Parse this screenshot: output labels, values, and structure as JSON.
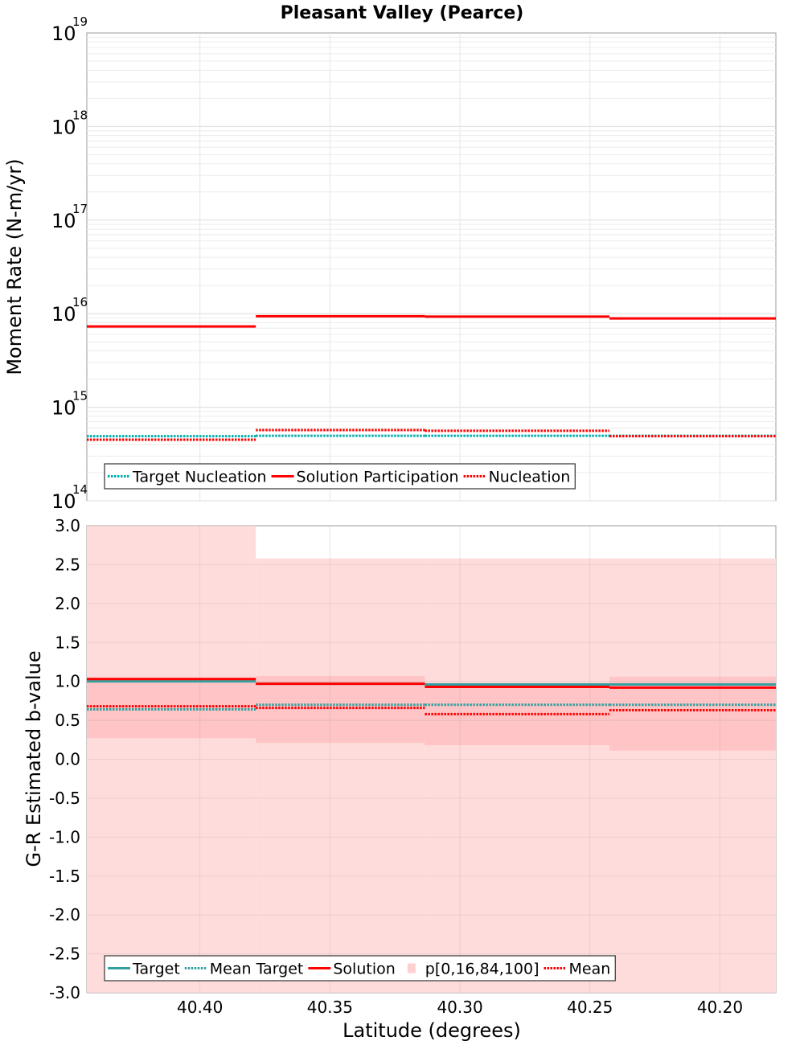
{
  "chart_data": [
    {
      "type": "line",
      "subtype": "step",
      "title": "Pleasant Valley (Pearce)",
      "xlabel": "",
      "ylabel": "Moment Rate (N-m/yr)",
      "yscale": "log",
      "ylim": [
        100000000000000.0,
        1e+19
      ],
      "y_ticks": [
        {
          "base": "10",
          "exp": "14",
          "value": 100000000000000.0
        },
        {
          "base": "10",
          "exp": "15",
          "value": 1000000000000000.0
        },
        {
          "base": "10",
          "exp": "16",
          "value": 1e+16
        },
        {
          "base": "10",
          "exp": "17",
          "value": 1e+17
        },
        {
          "base": "10",
          "exp": "18",
          "value": 1e+18
        },
        {
          "base": "10",
          "exp": "19",
          "value": 1e+19
        }
      ],
      "xlim": [
        40.4435,
        40.1785
      ],
      "x_reversed": true,
      "bin_edges": [
        40.4435,
        40.3785,
        40.3135,
        40.2425,
        40.1785
      ],
      "grid": true,
      "legend_position": "bottom-left",
      "series": [
        {
          "name": "Target Nucleation",
          "color": "#00b0b0",
          "style": "dotted",
          "values": [
            490000000000000.0,
            495000000000000.0,
            495000000000000.0,
            495000000000000.0
          ]
        },
        {
          "name": "Solution Participation",
          "color": "#ff0000",
          "style": "solid",
          "values": [
            7300000000000000.0,
            9400000000000000.0,
            9300000000000000.0,
            8900000000000000.0
          ]
        },
        {
          "name": "Nucleation",
          "color": "#ff0000",
          "style": "dotted",
          "values": [
            450000000000000.0,
            570000000000000.0,
            560000000000000.0,
            490000000000000.0
          ]
        }
      ]
    },
    {
      "type": "line",
      "subtype": "step",
      "title": "",
      "xlabel": "Latitude (degrees)",
      "ylabel": "G-R Estimated b-value",
      "ylim": [
        -3.0,
        3.0
      ],
      "y_ticks": [
        "-3.0",
        "-2.5",
        "-2.0",
        "-1.5",
        "-1.0",
        "-0.5",
        "0.0",
        "0.5",
        "1.0",
        "1.5",
        "2.0",
        "2.5",
        "3.0"
      ],
      "xlim": [
        40.4435,
        40.1785
      ],
      "x_reversed": true,
      "x_ticks": [
        "40.40",
        "40.35",
        "40.30",
        "40.25",
        "40.20"
      ],
      "x_tick_values": [
        40.4,
        40.35,
        40.3,
        40.25,
        40.2
      ],
      "bin_edges": [
        40.4435,
        40.3785,
        40.3135,
        40.2425,
        40.1785
      ],
      "grid": true,
      "legend_position": "bottom-left",
      "bands": {
        "name": "p[0,16,84,100]",
        "color": "#ff0000",
        "p0": [
          -3.0,
          -3.0,
          -3.0,
          -3.0
        ],
        "p100": [
          3.0,
          2.58,
          2.58,
          2.58
        ],
        "p16": [
          0.27,
          0.21,
          0.18,
          0.11
        ],
        "p84": [
          1.05,
          1.07,
          0.98,
          1.06
        ]
      },
      "series": [
        {
          "name": "Target",
          "color": "#33a0a0",
          "style": "solid",
          "values": [
            1.0,
            0.97,
            0.96,
            0.96
          ]
        },
        {
          "name": "Mean Target",
          "color": "#33a0a0",
          "style": "dotted",
          "values": [
            0.64,
            0.7,
            0.7,
            0.7
          ]
        },
        {
          "name": "Solution",
          "color": "#ff0000",
          "style": "solid",
          "values": [
            1.03,
            0.97,
            0.93,
            0.92
          ]
        },
        {
          "name": "Mean",
          "color": "#ff0000",
          "style": "dotted",
          "values": [
            0.68,
            0.66,
            0.58,
            0.63
          ]
        }
      ]
    }
  ]
}
